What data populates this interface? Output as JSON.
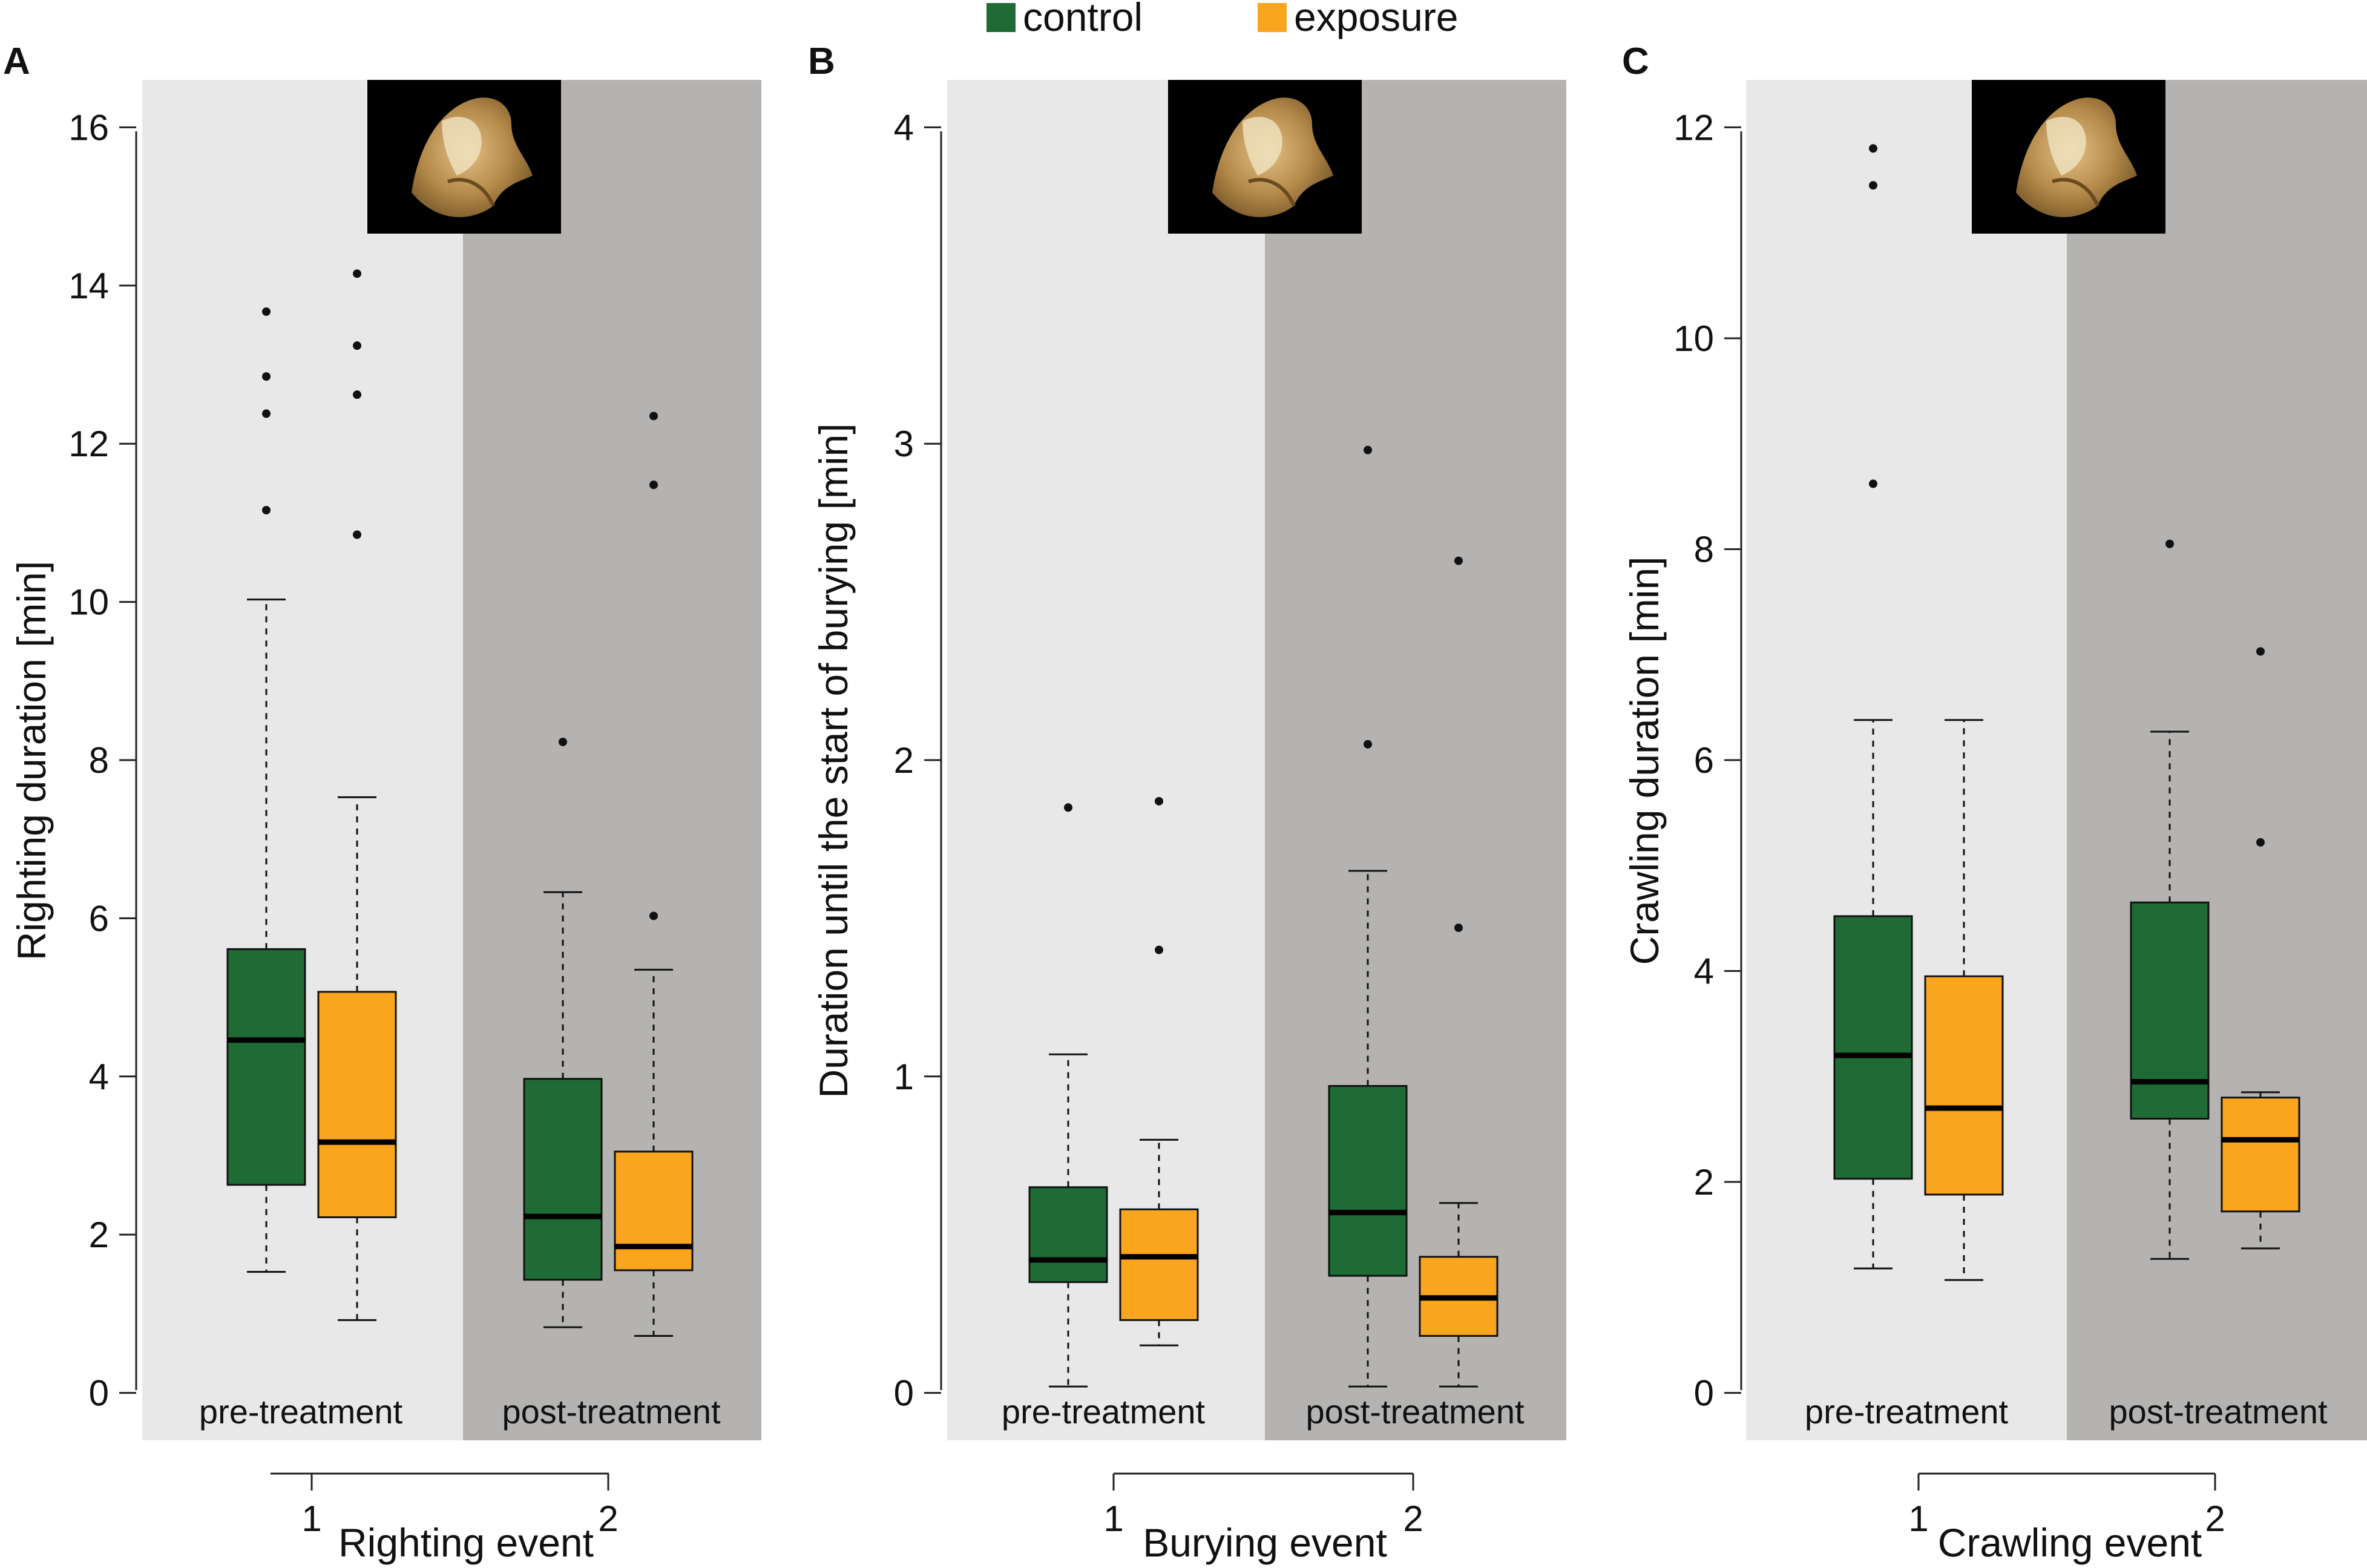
{
  "legend": {
    "items": [
      {
        "label": "control",
        "color": "#1e6b35"
      },
      {
        "label": "exposure",
        "color": "#f9a51d"
      }
    ]
  },
  "colors": {
    "region_pre": "#e8e8e8",
    "region_post": "#b4b3b1",
    "photo_bg": "#000000"
  },
  "chart_data": [
    {
      "type": "box",
      "panel_label": "A",
      "ylabel": "Righting duration [min]",
      "xlabel": "Righting event",
      "categories": [
        "1",
        "2"
      ],
      "region_labels": [
        "pre-treatment",
        "post-treatment"
      ],
      "ylim": [
        -0.6,
        16.6
      ],
      "yticks": [
        0,
        2,
        4,
        6,
        8,
        10,
        12,
        14,
        16
      ],
      "series": [
        {
          "name": "control",
          "boxes": [
            {
              "x": "1",
              "whisker_low": 1.53,
              "q1": 2.63,
              "median": 4.46,
              "q3": 5.61,
              "whisker_high": 10.03,
              "outliers": [
                11.16,
                12.38,
                12.85,
                13.67
              ]
            },
            {
              "x": "2",
              "whisker_low": 0.83,
              "q1": 1.43,
              "median": 2.23,
              "q3": 3.97,
              "whisker_high": 6.33,
              "outliers": [
                8.23
              ]
            }
          ]
        },
        {
          "name": "exposure",
          "boxes": [
            {
              "x": "1",
              "whisker_low": 0.92,
              "q1": 2.22,
              "median": 3.17,
              "q3": 5.07,
              "whisker_high": 7.53,
              "outliers": [
                10.85,
                12.62,
                13.24,
                14.15
              ]
            },
            {
              "x": "2",
              "whisker_low": 0.72,
              "q1": 1.55,
              "median": 1.85,
              "q3": 3.05,
              "whisker_high": 5.35,
              "outliers": [
                6.03,
                11.48,
                12.35
              ]
            }
          ]
        }
      ]
    },
    {
      "type": "box",
      "panel_label": "B",
      "ylabel": "Duration until the start of burying [min]",
      "xlabel": "Burying event",
      "categories": [
        "1",
        "2"
      ],
      "region_labels": [
        "pre-treatment",
        "post-treatment"
      ],
      "ylim": [
        -0.15,
        4.15
      ],
      "yticks": [
        0,
        1,
        2,
        3,
        4
      ],
      "series": [
        {
          "name": "control",
          "boxes": [
            {
              "x": "1",
              "whisker_low": 0.02,
              "q1": 0.35,
              "median": 0.42,
              "q3": 0.65,
              "whisker_high": 1.07,
              "outliers": [
                1.85
              ]
            },
            {
              "x": "2",
              "whisker_low": 0.02,
              "q1": 0.37,
              "median": 0.57,
              "q3": 0.97,
              "whisker_high": 1.65,
              "outliers": [
                2.05,
                2.98
              ]
            }
          ]
        },
        {
          "name": "exposure",
          "boxes": [
            {
              "x": "1",
              "whisker_low": 0.15,
              "q1": 0.23,
              "median": 0.43,
              "q3": 0.58,
              "whisker_high": 0.8,
              "outliers": [
                1.4,
                1.87
              ]
            },
            {
              "x": "2",
              "whisker_low": 0.02,
              "q1": 0.18,
              "median": 0.3,
              "q3": 0.43,
              "whisker_high": 0.6,
              "outliers": [
                1.47,
                2.63
              ]
            }
          ]
        }
      ]
    },
    {
      "type": "box",
      "panel_label": "C",
      "ylabel": "Crawling duration [min]",
      "xlabel": "Crawling event",
      "categories": [
        "1",
        "2"
      ],
      "region_labels": [
        "pre-treatment",
        "post-treatment"
      ],
      "ylim": [
        -0.45,
        12.45
      ],
      "yticks": [
        0,
        2,
        4,
        6,
        8,
        10,
        12
      ],
      "series": [
        {
          "name": "control",
          "boxes": [
            {
              "x": "1",
              "whisker_low": 1.18,
              "q1": 2.03,
              "median": 3.2,
              "q3": 4.52,
              "whisker_high": 6.38,
              "outliers": [
                8.62,
                11.45,
                11.8
              ]
            },
            {
              "x": "2",
              "whisker_low": 1.27,
              "q1": 2.6,
              "median": 2.95,
              "q3": 4.65,
              "whisker_high": 6.27,
              "outliers": [
                8.05
              ]
            }
          ]
        },
        {
          "name": "exposure",
          "boxes": [
            {
              "x": "1",
              "whisker_low": 1.07,
              "q1": 1.88,
              "median": 2.7,
              "q3": 3.95,
              "whisker_high": 6.38,
              "outliers": []
            },
            {
              "x": "2",
              "whisker_low": 1.37,
              "q1": 1.72,
              "median": 2.4,
              "q3": 2.8,
              "whisker_high": 2.85,
              "outliers": [
                5.22,
                7.03
              ]
            }
          ]
        }
      ]
    }
  ]
}
